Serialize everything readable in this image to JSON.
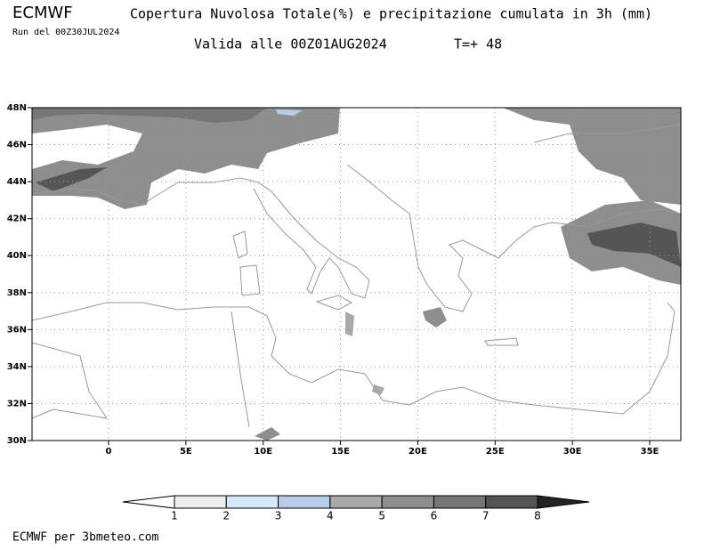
{
  "header": {
    "brand": "ECMWF",
    "title": "Copertura Nuvolosa Totale(%) e precipitazione cumulata in 3h (mm)",
    "run": "Run del 00Z30JUL2024",
    "valid": "Valida alle 00Z01AUG2024",
    "step": "T=+ 48"
  },
  "map": {
    "lat_labels": [
      "48N",
      "46N",
      "44N",
      "42N",
      "40N",
      "38N",
      "36N",
      "34N",
      "32N",
      "30N"
    ],
    "lon_labels": [
      "0",
      "5E",
      "10E",
      "15E",
      "20E",
      "25E",
      "30E",
      "35E"
    ]
  },
  "legend": {
    "labels": [
      "1",
      "2",
      "3",
      "4",
      "5",
      "6",
      "7",
      "8"
    ],
    "colors": [
      "#ffffff",
      "#eeeeee",
      "#d8e8f8",
      "#b8cce8",
      "#a8a8a8",
      "#8e8e8e",
      "#767676",
      "#555555",
      "#222222"
    ]
  },
  "footer": "ECMWF per 3bmeteo.com"
}
